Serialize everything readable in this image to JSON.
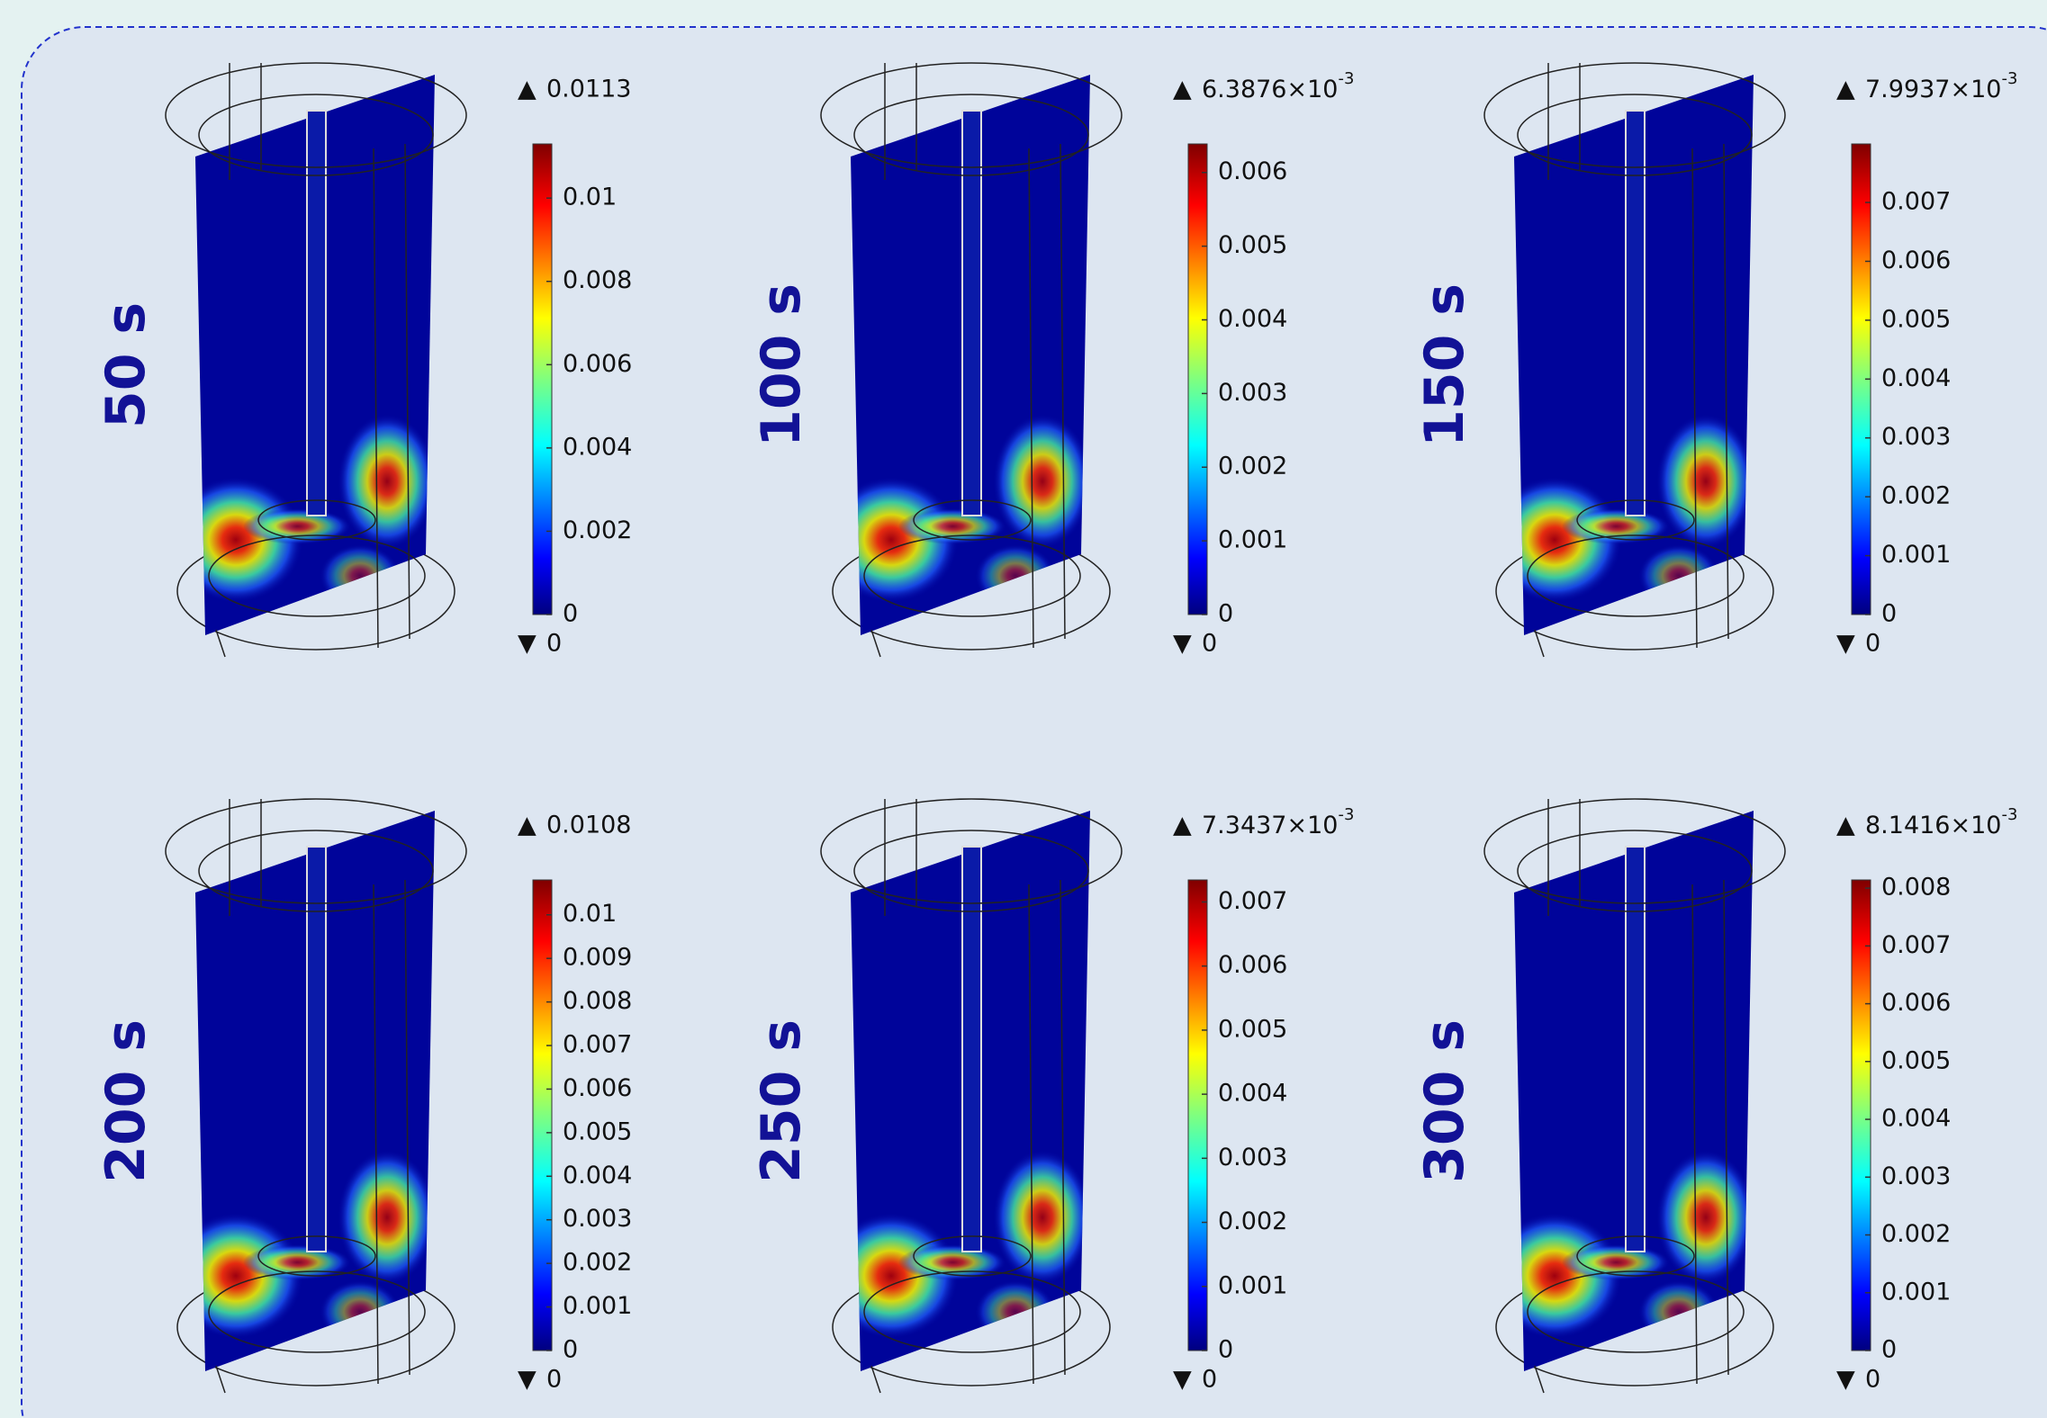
{
  "panels": [
    {
      "time": "50 s",
      "max": 0.0113,
      "min": 0,
      "ticks": [
        0,
        0.002,
        0.004,
        0.006,
        0.008,
        0.01
      ]
    },
    {
      "time": "100 s",
      "max": {
        "value": 0.0063876,
        "label": "6.3876×10",
        "exponent": "-3"
      },
      "min": 0,
      "ticks": [
        0,
        0.001,
        0.002,
        0.003,
        0.004,
        0.005,
        0.006
      ]
    },
    {
      "time": "150 s",
      "max": {
        "value": 0.0079937,
        "label": "7.9937×10",
        "exponent": "-3"
      },
      "min": 0,
      "ticks": [
        0,
        0.001,
        0.002,
        0.003,
        0.004,
        0.005,
        0.006,
        0.007
      ]
    },
    {
      "time": "200 s",
      "max": 0.0108,
      "min": 0,
      "ticks": [
        0,
        0.001,
        0.002,
        0.003,
        0.004,
        0.005,
        0.006,
        0.007,
        0.008,
        0.009,
        0.01
      ]
    },
    {
      "time": "250 s",
      "max": {
        "value": 0.0073437,
        "label": "7.3437×10",
        "exponent": "-3"
      },
      "min": 0,
      "ticks": [
        0,
        0.001,
        0.002,
        0.003,
        0.004,
        0.005,
        0.006,
        0.007
      ]
    },
    {
      "time": "300 s",
      "max": {
        "value": 0.0081416,
        "label": "8.1416×10",
        "exponent": "-3"
      },
      "min": 0,
      "ticks": [
        0,
        0.001,
        0.002,
        0.003,
        0.004,
        0.005,
        0.006,
        0.007,
        0.008
      ]
    }
  ]
}
